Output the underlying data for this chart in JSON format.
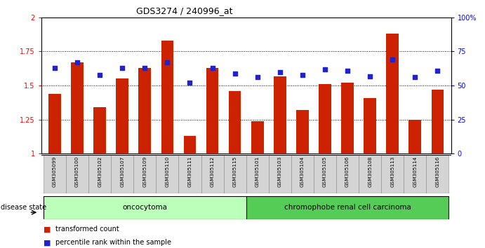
{
  "title": "GDS3274 / 240996_at",
  "samples": [
    "GSM305099",
    "GSM305100",
    "GSM305102",
    "GSM305107",
    "GSM305109",
    "GSM305110",
    "GSM305111",
    "GSM305112",
    "GSM305115",
    "GSM305101",
    "GSM305103",
    "GSM305104",
    "GSM305105",
    "GSM305106",
    "GSM305108",
    "GSM305113",
    "GSM305114",
    "GSM305116"
  ],
  "red_values": [
    1.44,
    1.67,
    1.34,
    1.55,
    1.63,
    1.83,
    1.13,
    1.63,
    1.46,
    1.24,
    1.57,
    1.32,
    1.51,
    1.52,
    1.41,
    1.88,
    1.25,
    1.47
  ],
  "blue_values": [
    63,
    67,
    58,
    63,
    63,
    67,
    52,
    63,
    59,
    56,
    60,
    58,
    62,
    61,
    57,
    69,
    56,
    61
  ],
  "oncocytoma_count": 9,
  "ylim_left": [
    1.0,
    2.0
  ],
  "ylim_right": [
    0,
    100
  ],
  "yticks_left": [
    1.0,
    1.25,
    1.5,
    1.75,
    2.0
  ],
  "ytick_labels_left": [
    "1",
    "1.25",
    "1.5",
    "1.75",
    "2"
  ],
  "yticks_right": [
    0,
    25,
    50,
    75,
    100
  ],
  "ytick_labels_right": [
    "0",
    "25",
    "50",
    "75",
    "100%"
  ],
  "bar_color": "#cc2200",
  "dot_color": "#2222cc",
  "onco_color": "#bbffbb",
  "chrom_color": "#55cc55",
  "legend_red": "transformed count",
  "legend_blue": "percentile rank within the sample",
  "disease_state_label": "disease state"
}
